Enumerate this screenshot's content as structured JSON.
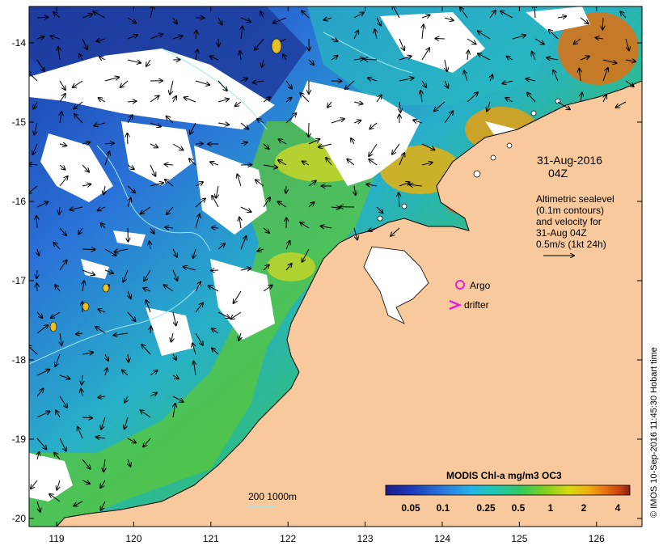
{
  "map": {
    "lon_ticks": [
      "119",
      "120",
      "121",
      "122",
      "123",
      "124",
      "125",
      "126"
    ],
    "lat_ticks": [
      "-14",
      "-15",
      "-16",
      "-17",
      "-18",
      "-19",
      "-20"
    ],
    "date_title": "31-Aug-2016",
    "time_title": "04Z",
    "legend_lines": [
      "Altimetric sealevel",
      "(0.1m contours)",
      "and velocity for",
      "31-Aug 04Z",
      "0.5m/s (1kt 24h)"
    ],
    "argo_label": "Argo",
    "drifter_label": "drifter",
    "isobath_label": "200  1000m",
    "credit": "© IMOS 10-Sep-2016 11:45:30 Hobart time",
    "colorbar": {
      "title": "MODIS Chl-a mg/m3 OC3",
      "tick_labels": [
        "0.05",
        "0.1",
        "0.25",
        "0.5",
        "1",
        "2",
        "4"
      ],
      "colors": [
        "#1a1a8c",
        "#1f3fbf",
        "#2a7fe0",
        "#25b3e6",
        "#20c8b0",
        "#30c860",
        "#7fd020",
        "#d8d810",
        "#f0b010",
        "#e87010",
        "#c84010",
        "#8a1a10"
      ]
    },
    "colors": {
      "land": "#f8c99c",
      "cloud": "#ffffff",
      "argo_marker": "#e020e0",
      "drifter_marker": "#e020e0"
    }
  }
}
